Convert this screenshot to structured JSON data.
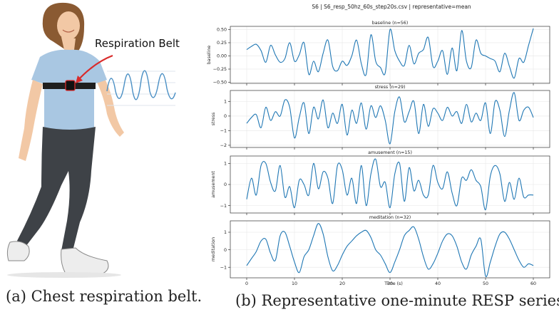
{
  "illustration": {
    "annotation_label": "Respiration Belt",
    "colors": {
      "shirt": "#a9c7e2",
      "leggings": "#3e4247",
      "hair": "#8a5a32",
      "skin": "#f2c8a5",
      "belt": "#1f1f1f",
      "arrow": "#d92b2b",
      "waveform": "#4a8fc4"
    }
  },
  "captions": {
    "a": "(a) Chest respiration belt.",
    "b": "(b) Representative one-minute RESP series."
  },
  "chart_data": {
    "type": "line",
    "title": "S6 | S6_resp_50hz_60s_step20s.csv | representative=mean",
    "xlabel": "Time (s)",
    "xlim": [
      0,
      60
    ],
    "x_ticks": [
      0,
      10,
      20,
      30,
      40,
      50,
      60
    ],
    "x_tick_labels": [
      "0",
      "10",
      "20",
      "30",
      "40",
      "50",
      "60"
    ],
    "grid": true,
    "line_color": "#1f77b4",
    "panels": [
      {
        "title": "baseline (n=56)",
        "ylabel": "baseline",
        "ylim": [
          -0.52,
          0.56
        ],
        "y_ticks": [
          -0.5,
          -0.25,
          0.0,
          0.25,
          0.5
        ],
        "y_tick_labels": [
          "−0.50",
          "−0.25",
          "0.00",
          "0.25",
          "0.50"
        ],
        "x": [
          0,
          1,
          2,
          3,
          4,
          5,
          6,
          7,
          8,
          9,
          10,
          11,
          12,
          13,
          14,
          15,
          16,
          17,
          18,
          19,
          20,
          21,
          22,
          23,
          24,
          25,
          26,
          27,
          28,
          29,
          30,
          31,
          32,
          33,
          34,
          35,
          36,
          37,
          38,
          39,
          40,
          41,
          42,
          43,
          44,
          45,
          46,
          47,
          48,
          49,
          50,
          51,
          52,
          53,
          54,
          55,
          56,
          57,
          58,
          59,
          60
        ],
        "y": [
          0.12,
          0.18,
          0.22,
          0.1,
          -0.12,
          0.2,
          0.02,
          -0.12,
          -0.05,
          0.25,
          -0.1,
          0.02,
          0.25,
          -0.35,
          -0.1,
          -0.3,
          0.05,
          0.3,
          -0.2,
          -0.28,
          -0.1,
          -0.18,
          0.0,
          0.3,
          -0.15,
          -0.35,
          0.4,
          -0.1,
          -0.22,
          -0.32,
          0.5,
          0.1,
          -0.1,
          -0.18,
          0.2,
          -0.15,
          0.05,
          0.12,
          0.35,
          -0.2,
          -0.1,
          0.1,
          -0.35,
          0.15,
          -0.28,
          0.48,
          -0.1,
          -0.22,
          0.3,
          0.05,
          0.0,
          -0.05,
          -0.1,
          -0.3,
          0.05,
          -0.2,
          -0.42,
          -0.05,
          -0.12,
          0.2,
          0.52
        ]
      },
      {
        "title": "stress (n=29)",
        "ylabel": "stress",
        "ylim": [
          -2.15,
          1.75
        ],
        "y_ticks": [
          -2,
          -1,
          0,
          1
        ],
        "y_tick_labels": [
          "−2",
          "−1",
          "0",
          "1"
        ],
        "x": [
          0,
          1,
          2,
          3,
          4,
          5,
          6,
          7,
          8,
          9,
          10,
          11,
          12,
          13,
          14,
          15,
          16,
          17,
          18,
          19,
          20,
          21,
          22,
          23,
          24,
          25,
          26,
          27,
          28,
          29,
          30,
          31,
          32,
          33,
          34,
          35,
          36,
          37,
          38,
          39,
          40,
          41,
          42,
          43,
          44,
          45,
          46,
          47,
          48,
          49,
          50,
          51,
          52,
          53,
          54,
          55,
          56,
          57,
          58,
          59,
          60
        ],
        "y": [
          -0.5,
          -0.1,
          0.1,
          -0.8,
          0.6,
          -0.3,
          0.3,
          0.0,
          1.1,
          0.6,
          -1.5,
          -0.1,
          0.9,
          -1.2,
          0.6,
          -0.2,
          1.1,
          -0.8,
          0.2,
          -0.5,
          0.8,
          -1.3,
          0.4,
          -0.5,
          0.9,
          -0.9,
          0.7,
          -0.1,
          0.7,
          -0.3,
          -1.9,
          0.3,
          1.3,
          -0.4,
          0.3,
          1.0,
          -1.2,
          0.8,
          -0.7,
          0.5,
          0.2,
          -0.3,
          0.6,
          0.0,
          0.3,
          -0.5,
          0.8,
          -0.4,
          0.2,
          -0.3,
          0.9,
          -1.2,
          1.0,
          0.4,
          -1.4,
          0.4,
          1.6,
          -0.3,
          0.4,
          0.6,
          -0.1
        ]
      },
      {
        "title": "amusement (n=15)",
        "ylabel": "amusement",
        "ylim": [
          -1.35,
          1.35
        ],
        "y_ticks": [
          -1,
          0,
          1
        ],
        "y_tick_labels": [
          "−1",
          "0",
          "1"
        ],
        "x": [
          0,
          1,
          2,
          3,
          4,
          5,
          6,
          7,
          8,
          9,
          10,
          11,
          12,
          13,
          14,
          15,
          16,
          17,
          18,
          19,
          20,
          21,
          22,
          23,
          24,
          25,
          26,
          27,
          28,
          29,
          30,
          31,
          32,
          33,
          34,
          35,
          36,
          37,
          38,
          39,
          40,
          41,
          42,
          43,
          44,
          45,
          46,
          47,
          48,
          49,
          50,
          51,
          52,
          53,
          54,
          55,
          56,
          57,
          58,
          59,
          60
        ],
        "y": [
          -0.7,
          0.3,
          -0.5,
          0.9,
          1.0,
          0.1,
          -0.3,
          0.9,
          -0.6,
          -0.1,
          -1.1,
          0.2,
          0.0,
          -0.5,
          1.0,
          -0.2,
          0.6,
          0.3,
          -0.9,
          0.9,
          0.7,
          -0.5,
          0.3,
          -0.9,
          0.9,
          -1.0,
          0.5,
          1.2,
          -0.1,
          0.1,
          -1.1,
          0.5,
          1.0,
          -0.8,
          0.8,
          -0.3,
          0.2,
          -0.5,
          -0.5,
          0.9,
          0.1,
          -0.2,
          0.6,
          -0.4,
          -1.0,
          0.3,
          0.2,
          0.7,
          0.2,
          -0.1,
          -1.2,
          0.4,
          0.9,
          0.5,
          -0.8,
          0.1,
          -0.7,
          0.3,
          -0.6,
          -0.5,
          -0.5
        ]
      },
      {
        "title": "meditation (n=32)",
        "ylabel": "meditation",
        "ylim": [
          -1.6,
          1.65
        ],
        "y_ticks": [
          -1,
          0,
          1
        ],
        "y_tick_labels": [
          "−1",
          "0",
          "1"
        ],
        "x": [
          0,
          1,
          2,
          3,
          4,
          5,
          6,
          7,
          8,
          9,
          10,
          11,
          12,
          13,
          14,
          15,
          16,
          17,
          18,
          19,
          20,
          21,
          22,
          23,
          24,
          25,
          26,
          27,
          28,
          29,
          30,
          31,
          32,
          33,
          34,
          35,
          36,
          37,
          38,
          39,
          40,
          41,
          42,
          43,
          44,
          45,
          46,
          47,
          48,
          49,
          50,
          51,
          52,
          53,
          54,
          55,
          56,
          57,
          58,
          59,
          60
        ],
        "y": [
          -0.9,
          -0.5,
          -0.1,
          0.5,
          0.6,
          -0.2,
          -0.6,
          0.8,
          1.0,
          0.2,
          -0.7,
          -1.3,
          -0.4,
          0.0,
          0.8,
          1.5,
          0.9,
          -0.4,
          -1.2,
          -0.9,
          -0.3,
          0.2,
          0.5,
          0.8,
          1.0,
          1.1,
          0.7,
          0.0,
          -0.3,
          -0.8,
          -1.3,
          -0.7,
          0.0,
          0.8,
          1.1,
          1.3,
          0.6,
          -0.4,
          -1.1,
          -0.8,
          -0.2,
          0.5,
          0.9,
          0.8,
          0.2,
          -0.7,
          -1.1,
          -0.3,
          0.2,
          0.6,
          -1.5,
          -0.7,
          0.2,
          0.9,
          1.0,
          0.6,
          0.0,
          -0.6,
          -1.0,
          -0.8,
          -0.9
        ]
      }
    ]
  }
}
